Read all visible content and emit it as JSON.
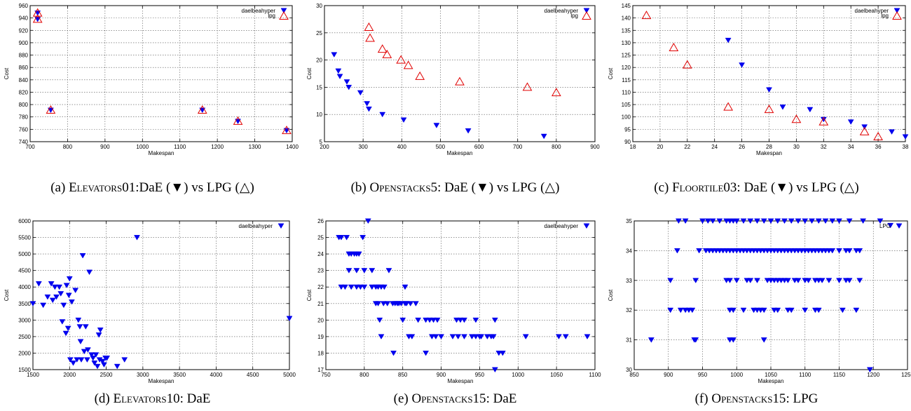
{
  "captions": [
    {
      "prefix": "(a) ",
      "name": "Elevators01",
      "suffix": ":DaE (▼) vs LPG (△)"
    },
    {
      "prefix": "(b) ",
      "name": "Openstacks5",
      "suffix": ": DaE (▼) vs LPG (△)"
    },
    {
      "prefix": "(c) ",
      "name": "Floortile03",
      "suffix": ": DaE (▼) vs LPG (△)"
    },
    {
      "prefix": "(d) ",
      "name": "Elevators10",
      "suffix": ": DaE"
    },
    {
      "prefix": "(e) ",
      "name": "Openstacks15",
      "suffix": ": DaE"
    },
    {
      "prefix": "(f) ",
      "name": "Openstacks15",
      "suffix": ": LPG"
    }
  ],
  "colors": {
    "dae": "#0000ee",
    "lpg": "#e00000",
    "grid": "#555555"
  },
  "chart_data": [
    {
      "type": "scatter",
      "xlabel": "Makespan",
      "ylabel": "Cost",
      "xlim": [
        700,
        1400
      ],
      "ylim": [
        740,
        960
      ],
      "xticks": [
        700,
        800,
        900,
        1000,
        1100,
        1200,
        1300,
        1400
      ],
      "yticks": [
        740,
        760,
        780,
        800,
        820,
        840,
        860,
        880,
        900,
        920,
        940,
        960
      ],
      "grid": true,
      "legend_position": "top-right",
      "series": [
        {
          "name": "daelbeahyper",
          "marker": "filled-down-triangle",
          "x": [
            720,
            720,
            755,
            1160,
            1255,
            1385
          ],
          "y": [
            948,
            938,
            791,
            791,
            773,
            758
          ]
        },
        {
          "name": "lpg",
          "marker": "open-up-triangle",
          "x": [
            720,
            720,
            755,
            1160,
            1255,
            1385
          ],
          "y": [
            948,
            938,
            791,
            791,
            773,
            758
          ]
        }
      ]
    },
    {
      "type": "scatter",
      "xlabel": "Makespan",
      "ylabel": "Cost",
      "xlim": [
        200,
        900
      ],
      "ylim": [
        5,
        30
      ],
      "xticks": [
        200,
        300,
        400,
        500,
        600,
        700,
        800,
        900
      ],
      "yticks": [
        5,
        10,
        15,
        20,
        25,
        30
      ],
      "grid": true,
      "legend_position": "top-right",
      "series": [
        {
          "name": "daelbeahyper",
          "marker": "filled-down-triangle",
          "x": [
            225,
            236,
            240,
            258,
            263,
            293,
            310,
            315,
            350,
            405,
            490,
            572,
            768
          ],
          "y": [
            21,
            18,
            17,
            16,
            15,
            14,
            12,
            11,
            10,
            9,
            8,
            7,
            6
          ]
        },
        {
          "name": "lpg",
          "marker": "open-up-triangle",
          "x": [
            315,
            318,
            350,
            362,
            398,
            417,
            447,
            550,
            725,
            800
          ],
          "y": [
            26,
            24,
            22,
            21,
            20,
            19,
            17,
            16,
            15,
            14
          ]
        }
      ]
    },
    {
      "type": "scatter",
      "xlabel": "Makespan",
      "ylabel": "Cost",
      "xlim": [
        18,
        38
      ],
      "ylim": [
        90,
        145
      ],
      "xticks": [
        18,
        20,
        22,
        24,
        26,
        28,
        30,
        32,
        34,
        36,
        38
      ],
      "yticks": [
        90,
        95,
        100,
        105,
        110,
        115,
        120,
        125,
        130,
        135,
        140,
        145
      ],
      "grid": true,
      "legend_position": "top-right",
      "series": [
        {
          "name": "daelbeahyper",
          "marker": "filled-down-triangle",
          "x": [
            25,
            26,
            28,
            29,
            31,
            32,
            34,
            35,
            37,
            38
          ],
          "y": [
            131,
            121,
            111,
            104,
            103,
            99,
            98,
            96,
            94,
            92
          ]
        },
        {
          "name": "lpg",
          "marker": "open-up-triangle",
          "x": [
            19,
            21,
            22,
            25,
            28,
            30,
            32,
            35,
            36
          ],
          "y": [
            141,
            128,
            121,
            104,
            103,
            99,
            98,
            94,
            92
          ]
        }
      ]
    },
    {
      "type": "scatter",
      "xlabel": "Makespan",
      "ylabel": "Cost",
      "xlim": [
        1500,
        5000
      ],
      "ylim": [
        1500,
        6000
      ],
      "xticks": [
        1500,
        2000,
        2500,
        3000,
        3500,
        4000,
        4500,
        5000
      ],
      "yticks": [
        1500,
        2000,
        2500,
        3000,
        3500,
        4000,
        4500,
        5000,
        5500,
        6000
      ],
      "grid": true,
      "legend_position": "top-right",
      "series": [
        {
          "name": "daelbeahyper",
          "marker": "filled-down-triangle",
          "x": [
            1500,
            1580,
            1640,
            1700,
            1750,
            1770,
            1800,
            1820,
            1860,
            1880,
            1900,
            1920,
            1950,
            1960,
            1980,
            1990,
            2000,
            2010,
            2030,
            2050,
            2080,
            2100,
            2120,
            2140,
            2150,
            2160,
            2180,
            2200,
            2220,
            2240,
            2250,
            2270,
            2300,
            2320,
            2340,
            2360,
            2380,
            2400,
            2410,
            2420,
            2450,
            2470,
            2490,
            2510,
            2650,
            2750,
            2920,
            5000
          ],
          "y": [
            3500,
            4100,
            3450,
            3700,
            4100,
            3600,
            4000,
            3700,
            4000,
            3800,
            2950,
            3450,
            2600,
            4050,
            2750,
            3750,
            4250,
            1800,
            3550,
            1700,
            3900,
            1800,
            3000,
            2800,
            2350,
            1800,
            4950,
            2050,
            2800,
            1800,
            2100,
            4450,
            1950,
            1850,
            1700,
            1950,
            1600,
            2550,
            1800,
            2700,
            1750,
            1650,
            1850,
            1850,
            1600,
            1800,
            5500,
            3050
          ]
        }
      ]
    },
    {
      "type": "scatter",
      "xlabel": "Makespan",
      "ylabel": "Cost",
      "xlim": [
        750,
        1100
      ],
      "ylim": [
        17,
        26
      ],
      "xticks": [
        750,
        800,
        850,
        900,
        950,
        1000,
        1050,
        1100
      ],
      "yticks": [
        17,
        18,
        19,
        20,
        21,
        22,
        23,
        24,
        25,
        26
      ],
      "grid": true,
      "legend_position": "top-right",
      "series": [
        {
          "name": "daelbeahyper",
          "marker": "filled-down-triangle",
          "x": [
            767,
            770,
            777,
            780,
            783,
            787,
            790,
            793,
            798,
            805,
            770,
            775,
            783,
            790,
            795,
            800,
            810,
            815,
            780,
            790,
            800,
            810,
            818,
            822,
            826,
            832,
            843,
            853,
            815,
            818,
            825,
            830,
            837,
            840,
            845,
            848,
            853,
            855,
            860,
            867,
            820,
            850,
            870,
            880,
            885,
            890,
            895,
            900,
            920,
            925,
            930,
            945,
            952,
            960,
            965,
            970,
            822,
            858,
            862,
            888,
            893,
            915,
            922,
            930,
            940,
            945,
            950,
            968,
            980,
            1010,
            1053,
            1062,
            1090,
            838,
            880,
            975,
            970
          ],
          "y": [
            25,
            25,
            25,
            24,
            24,
            24,
            24,
            24,
            25,
            26,
            22,
            22,
            22,
            22,
            22,
            22,
            22,
            22,
            23,
            23,
            23,
            23,
            22,
            22,
            22,
            23,
            21,
            22,
            21,
            21,
            21,
            21,
            21,
            21,
            21,
            21,
            21,
            21,
            21,
            21,
            20,
            20,
            20,
            20,
            20,
            20,
            20,
            19,
            20,
            20,
            20,
            20,
            19,
            19,
            19,
            20,
            19,
            19,
            19,
            19,
            19,
            19,
            19,
            19,
            19,
            19,
            19,
            19,
            18,
            19,
            19,
            19,
            19,
            18,
            18,
            18,
            17
          ]
        }
      ]
    },
    {
      "type": "scatter",
      "xlabel": "Makespan",
      "ylabel": "Cost",
      "xlim": [
        850,
        1250
      ],
      "ylim": [
        30,
        35
      ],
      "xticks": [
        850,
        900,
        950,
        1000,
        1050,
        1100,
        1150,
        1200,
        1250
      ],
      "yticks": [
        30,
        31,
        32,
        33,
        34,
        35
      ],
      "grid": true,
      "legend_position": "top-right",
      "series": [
        {
          "name": "LPG",
          "marker": "filled-down-triangle",
          "x": [
            875,
            938,
            940,
            990,
            995,
            1040,
            1195,
            903,
            918,
            925,
            930,
            935,
            990,
            995,
            1010,
            1025,
            1030,
            1035,
            1040,
            1055,
            1060,
            1075,
            1080,
            1100,
            1115,
            1120,
            1155,
            1175,
            903,
            940,
            985,
            990,
            1000,
            1015,
            1020,
            1030,
            1045,
            1050,
            1055,
            1060,
            1065,
            1070,
            1075,
            1085,
            1090,
            1100,
            1105,
            1115,
            1120,
            1125,
            1135,
            1150,
            1160,
            1165,
            1180,
            913,
            945,
            955,
            960,
            965,
            970,
            975,
            980,
            985,
            990,
            995,
            1000,
            1005,
            1010,
            1015,
            1020,
            1025,
            1030,
            1035,
            1040,
            1045,
            1050,
            1055,
            1060,
            1065,
            1070,
            1075,
            1080,
            1085,
            1090,
            1095,
            1100,
            1105,
            1110,
            1115,
            1120,
            1125,
            1130,
            1135,
            1140,
            1150,
            1160,
            1165,
            1175,
            1180,
            915,
            925,
            950,
            958,
            965,
            975,
            985,
            990,
            995,
            1000,
            1010,
            1020,
            1030,
            1040,
            1050,
            1060,
            1070,
            1080,
            1090,
            1100,
            1110,
            1120,
            1130,
            1140,
            1150,
            1165,
            1185,
            1210,
            1225
          ],
          "y": [
            31,
            31,
            31,
            31,
            31,
            31,
            30,
            32,
            32,
            32,
            32,
            32,
            32,
            32,
            32,
            32,
            32,
            32,
            32,
            32,
            32,
            32,
            32,
            32,
            32,
            32,
            32,
            32,
            33,
            33,
            33,
            33,
            33,
            33,
            33,
            33,
            33,
            33,
            33,
            33,
            33,
            33,
            33,
            33,
            33,
            33,
            33,
            33,
            33,
            33,
            33,
            33,
            33,
            33,
            33,
            34,
            34,
            34,
            34,
            34,
            34,
            34,
            34,
            34,
            34,
            34,
            34,
            34,
            34,
            34,
            34,
            34,
            34,
            34,
            34,
            34,
            34,
            34,
            34,
            34,
            34,
            34,
            34,
            34,
            34,
            34,
            34,
            34,
            34,
            34,
            34,
            34,
            34,
            34,
            34,
            34,
            34,
            34,
            34,
            34,
            35,
            35,
            35,
            35,
            35,
            35,
            35,
            35,
            35,
            35,
            35,
            35,
            35,
            35,
            35,
            35,
            35,
            35,
            35,
            35,
            35,
            35,
            35,
            35,
            35,
            35,
            35,
            35,
            34.85
          ]
        }
      ]
    }
  ]
}
